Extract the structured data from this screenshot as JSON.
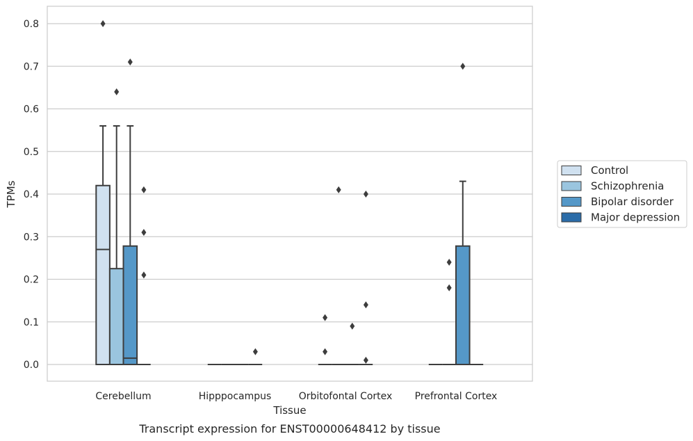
{
  "caption": "Transcript expression for ENST00000648412 by tissue",
  "chart_data": {
    "type": "box",
    "xlabel": "Tissue",
    "ylabel": "TPMs",
    "ylim": [
      -0.04,
      0.84
    ],
    "yticks": [
      0.0,
      0.1,
      0.2,
      0.3,
      0.4,
      0.5,
      0.6,
      0.7,
      0.8
    ],
    "ytick_labels": [
      "0.0",
      "0.1",
      "0.2",
      "0.3",
      "0.4",
      "0.5",
      "0.6",
      "0.7",
      "0.8"
    ],
    "grid": "horizontal",
    "legend_position": "right",
    "categories": [
      "Cerebellum",
      "Hipppocampus",
      "Orbitofontal Cortex",
      "Prefrontal Cortex"
    ],
    "series": [
      {
        "name": "Control",
        "color": "#d0e1f0",
        "boxes": [
          {
            "q1": 0.0,
            "median": 0.27,
            "q3": 0.42,
            "whislo": 0.0,
            "whishi": 0.56,
            "fliers": [
              0.8
            ]
          },
          {
            "q1": 0.0,
            "median": 0.0,
            "q3": 0.0,
            "whislo": 0.0,
            "whishi": 0.0,
            "fliers": []
          },
          {
            "q1": 0.0,
            "median": 0.0,
            "q3": 0.0,
            "whislo": 0.0,
            "whishi": 0.0,
            "fliers": [
              0.11,
              0.03
            ]
          },
          {
            "q1": 0.0,
            "median": 0.0,
            "q3": 0.0,
            "whislo": 0.0,
            "whishi": 0.0,
            "fliers": []
          }
        ]
      },
      {
        "name": "Schizophrenia",
        "color": "#9ac5df",
        "boxes": [
          {
            "q1": 0.0,
            "median": 0.0,
            "q3": 0.225,
            "whislo": 0.0,
            "whishi": 0.56,
            "fliers": [
              0.64
            ]
          },
          {
            "q1": 0.0,
            "median": 0.0,
            "q3": 0.0,
            "whislo": 0.0,
            "whishi": 0.0,
            "fliers": []
          },
          {
            "q1": 0.0,
            "median": 0.0,
            "q3": 0.0,
            "whislo": 0.0,
            "whishi": 0.0,
            "fliers": [
              0.41
            ]
          },
          {
            "q1": 0.0,
            "median": 0.0,
            "q3": 0.0,
            "whislo": 0.0,
            "whishi": 0.0,
            "fliers": [
              0.24,
              0.18
            ]
          }
        ]
      },
      {
        "name": "Bipolar disorder",
        "color": "#5598c8",
        "boxes": [
          {
            "q1": 0.0,
            "median": 0.015,
            "q3": 0.278,
            "whislo": 0.0,
            "whishi": 0.56,
            "fliers": [
              0.71
            ]
          },
          {
            "q1": 0.0,
            "median": 0.0,
            "q3": 0.0,
            "whislo": 0.0,
            "whishi": 0.0,
            "fliers": []
          },
          {
            "q1": 0.0,
            "median": 0.0,
            "q3": 0.0,
            "whislo": 0.0,
            "whishi": 0.0,
            "fliers": [
              0.09
            ]
          },
          {
            "q1": 0.0,
            "median": 0.0,
            "q3": 0.278,
            "whislo": 0.0,
            "whishi": 0.43,
            "fliers": [
              0.7
            ]
          }
        ]
      },
      {
        "name": "Major depression",
        "color": "#2b6ca8",
        "boxes": [
          {
            "q1": 0.0,
            "median": 0.0,
            "q3": 0.0,
            "whislo": 0.0,
            "whishi": 0.0,
            "fliers": [
              0.41,
              0.31,
              0.21
            ]
          },
          {
            "q1": 0.0,
            "median": 0.0,
            "q3": 0.0,
            "whislo": 0.0,
            "whishi": 0.0,
            "fliers": [
              0.03
            ]
          },
          {
            "q1": 0.0,
            "median": 0.0,
            "q3": 0.0,
            "whislo": 0.0,
            "whishi": 0.0,
            "fliers": [
              0.4,
              0.14,
              0.01
            ]
          },
          {
            "q1": 0.0,
            "median": 0.0,
            "q3": 0.0,
            "whislo": 0.0,
            "whishi": 0.0,
            "fliers": []
          }
        ]
      }
    ]
  }
}
